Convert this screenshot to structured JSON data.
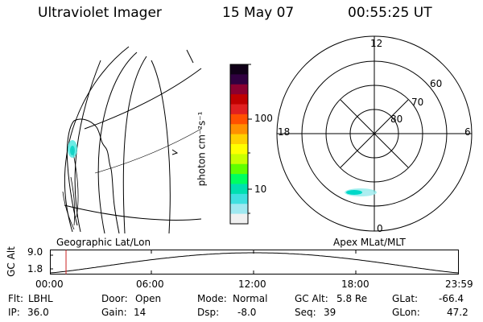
{
  "header": {
    "instrument": "Ultraviolet Imager",
    "date": "15 May 07",
    "time": "00:55:25 UT"
  },
  "geo_panel": {
    "label": "Geographic Lat/Lon"
  },
  "apex_panel": {
    "label": "Apex MLat/MLT",
    "mlt_labels": {
      "top": "12",
      "left": "18",
      "right": "6",
      "bottom": "0"
    },
    "mlat_labels": [
      "60",
      "70",
      "80"
    ]
  },
  "colorbar": {
    "unit_label": "photon cm⁻²s⁻¹",
    "ticks": [
      "100",
      "10"
    ],
    "colors": [
      "#100018",
      "#300040",
      "#8b0030",
      "#c00000",
      "#e02020",
      "#ff5000",
      "#ff9000",
      "#ffd000",
      "#ffff00",
      "#c8ff00",
      "#60ff00",
      "#00ff60",
      "#00e0b0",
      "#40e0e0",
      "#a0e8f0",
      "#f0f0f0"
    ]
  },
  "orbit_strip": {
    "axis_title": "GC Alt",
    "y_ticks": [
      "9.0",
      "1.8"
    ],
    "x_ticks": [
      "00:00",
      "06:00",
      "12:00",
      "18:00",
      "23:59"
    ],
    "current_time_fraction": 0.0385
  },
  "status": {
    "flt_label": "Flt:",
    "flt_value": "LBHL",
    "ip_label": "IP:",
    "ip_value": "36.0",
    "door_label": "Door:",
    "door_value": "Open",
    "gain_label": "Gain:",
    "gain_value": "14",
    "mode_label": "Mode:",
    "mode_value": "Normal",
    "dsp_label": "Dsp:",
    "dsp_value": "-8.0",
    "gcalt_label": "GC Alt:",
    "gcalt_value": "5.8 Re",
    "seq_label": "Seq:",
    "seq_value": "39",
    "glat_label": "GLat:",
    "glat_value": "-66.4",
    "glon_label": "GLon:",
    "glon_value": "47.2"
  }
}
